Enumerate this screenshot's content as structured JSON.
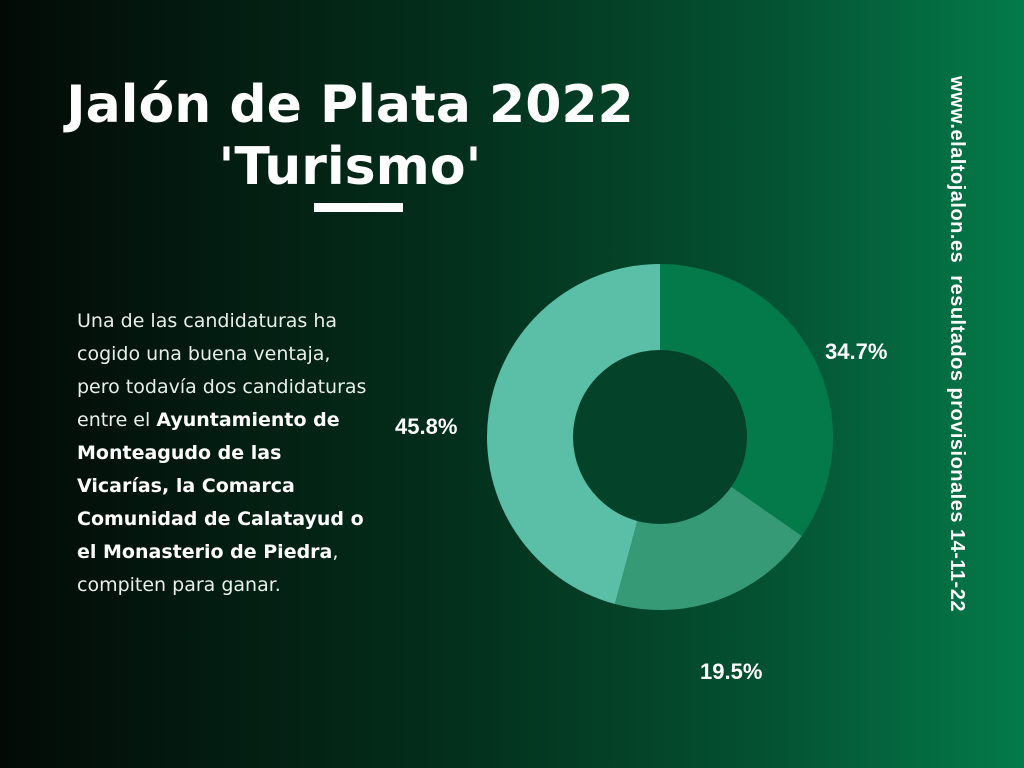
{
  "title": {
    "line1": "Jalón de Plata 2022",
    "line2": "'Turismo'"
  },
  "description": {
    "p1": "Una de las candidaturas ha cogido una buena ventaja, pero todavía dos candidaturas entre el ",
    "bold1": "Ayuntamiento de Monteagudo de las Vicarías, la Comarca Comunidad de Calatayud o el Monasterio de Piedra",
    "p2": ", compiten para ganar."
  },
  "side_text": "www.elaltojalon.es  resultados provisionales 14-11-22",
  "colors": {
    "slice_1": "#047a4a",
    "slice_2": "#369a77",
    "slice_3": "#5abfa6",
    "hole": "#04422a"
  },
  "chart_data": {
    "type": "pie",
    "variant": "donut",
    "values": [
      34.7,
      19.5,
      45.8
    ],
    "labels": [
      "34.7%",
      "19.5%",
      "45.8%"
    ],
    "start_angle_deg": 0,
    "direction": "clockwise"
  }
}
